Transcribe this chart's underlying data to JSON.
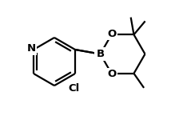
{
  "background": "#ffffff",
  "line_color": "#000000",
  "line_width": 1.6,
  "font_size_label": 9.5,
  "N_label": "N",
  "B_label": "B",
  "O_label": "O",
  "Cl_label": "Cl"
}
